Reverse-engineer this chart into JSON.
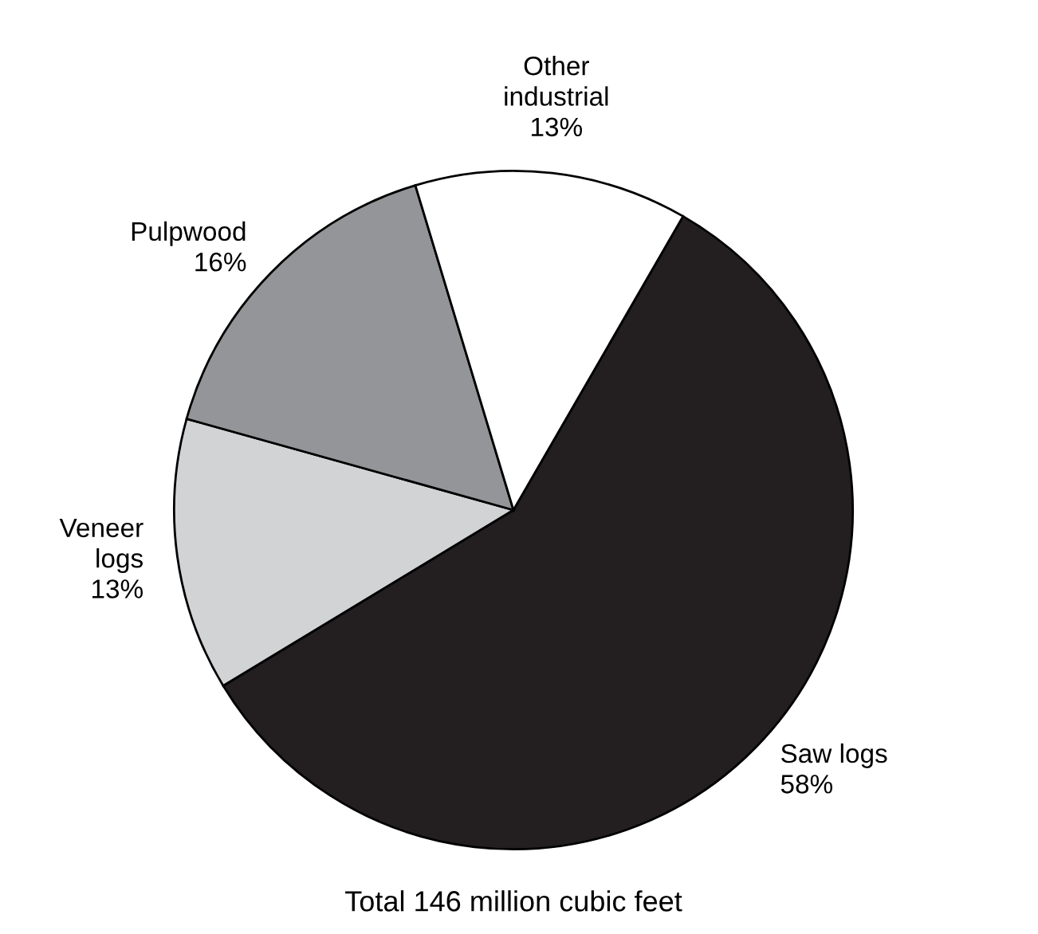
{
  "chart_data": {
    "type": "pie",
    "categories": [
      "Saw logs",
      "Veneer\nlogs",
      "Pulpwood",
      "Other\nindustrial"
    ],
    "values": [
      58,
      13,
      16,
      13
    ],
    "value_labels": [
      "58%",
      "13%",
      "16%",
      "13%"
    ],
    "colors": [
      "#231f20",
      "#d1d3d4",
      "#939598",
      "#ffffff"
    ],
    "annotations": [
      "Total 146 million cubic feet"
    ]
  }
}
